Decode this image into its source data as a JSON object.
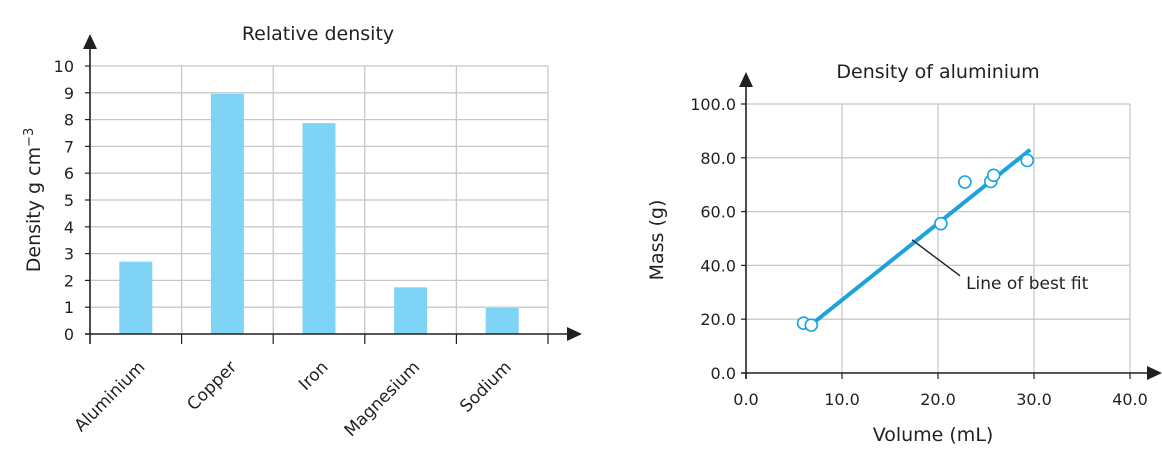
{
  "chart_data": [
    {
      "type": "bar",
      "title": "Relative density",
      "ylabel": "Density g cm",
      "ylabel_superscript": "−3",
      "categories": [
        "Aluminium",
        "Copper",
        "Iron",
        "Magnesium",
        "Sodium"
      ],
      "values": [
        2.7,
        8.96,
        7.87,
        1.74,
        0.97
      ],
      "ylim": [
        0,
        10
      ],
      "yticks": [
        "0",
        "1",
        "2",
        "3",
        "4",
        "5",
        "6",
        "7",
        "8",
        "9",
        "10"
      ],
      "grid": true,
      "bar_color": "#7fd4f5",
      "grid_color": "#c8c8c8",
      "axis_color": "#231f20"
    },
    {
      "type": "scatter",
      "title": "Density of aluminium",
      "xlabel": "Volume (mL)",
      "ylabel": "Mass (g)",
      "xlim": [
        0,
        40
      ],
      "ylim": [
        0,
        100
      ],
      "xticks": [
        "0.0",
        "10.0",
        "20.0",
        "30.0",
        "40.0"
      ],
      "yticks": [
        "0.0",
        "20.0",
        "40.0",
        "60.0",
        "80.0",
        "100.0"
      ],
      "points": [
        {
          "x": 6.0,
          "y": 18.5
        },
        {
          "x": 6.8,
          "y": 17.8
        },
        {
          "x": 20.3,
          "y": 55.5
        },
        {
          "x": 22.8,
          "y": 71.0
        },
        {
          "x": 25.5,
          "y": 71.2
        },
        {
          "x": 25.8,
          "y": 73.5
        },
        {
          "x": 29.3,
          "y": 79.0
        }
      ],
      "best_fit": {
        "x1": 6.8,
        "y1": 18.0,
        "x2": 29.6,
        "y2": 83.0
      },
      "annotation": {
        "text": "Line of best fit",
        "point_x": 17.3,
        "point_y": 49.5
      },
      "grid": true,
      "line_color": "#1aa3dc",
      "marker_color": "#1aa3dc",
      "grid_color": "#c8c8c8",
      "axis_color": "#231f20"
    }
  ]
}
